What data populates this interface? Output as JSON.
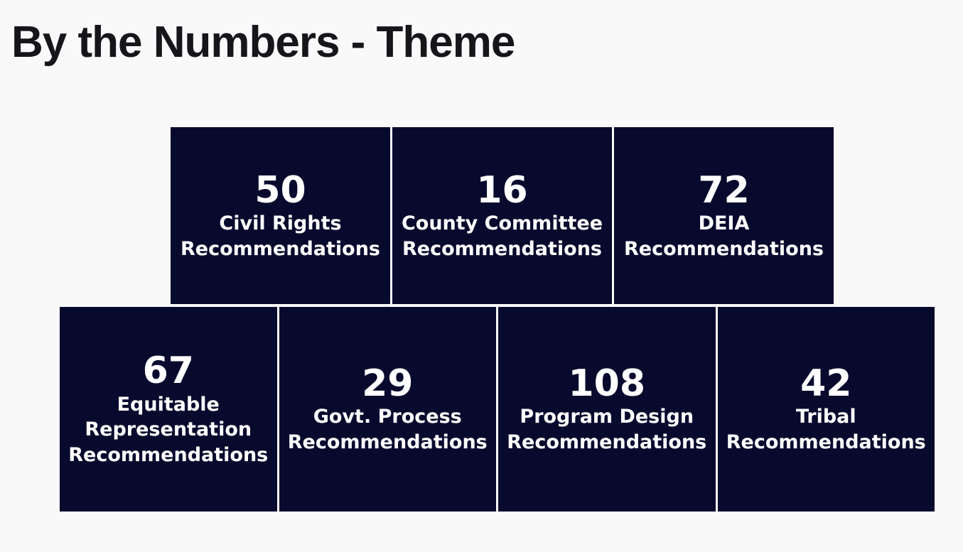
{
  "page": {
    "title": "By the Numbers - Theme"
  },
  "colors": {
    "page_bg": "#f9f9f9",
    "box_bg": "#080a2d",
    "box_text": "#ffffff",
    "title_text": "#15151a"
  },
  "rows": [
    {
      "boxes": [
        {
          "value": "50",
          "label": "Civil Rights\nRecommendations"
        },
        {
          "value": "16",
          "label": "County Committee\nRecommendations"
        },
        {
          "value": "72",
          "label": "DEIA\nRecommendations"
        }
      ]
    },
    {
      "boxes": [
        {
          "value": "67",
          "label": "Equitable\nRepresentation\nRecommendations"
        },
        {
          "value": "29",
          "label": "Govt. Process\nRecommendations"
        },
        {
          "value": "108",
          "label": "Program Design\nRecommendations"
        },
        {
          "value": "42",
          "label": "Tribal\nRecommendations"
        }
      ]
    }
  ],
  "chart_data": {
    "type": "table",
    "title": "By the Numbers - Theme",
    "categories": [
      "Civil Rights",
      "County Committee",
      "DEIA",
      "Equitable Representation",
      "Govt. Process",
      "Program Design",
      "Tribal"
    ],
    "values": [
      50,
      16,
      72,
      67,
      29,
      108,
      42
    ],
    "ylabel": "Recommendations",
    "layout": "stat cards in two rows: 3 on top, 4 on bottom"
  }
}
